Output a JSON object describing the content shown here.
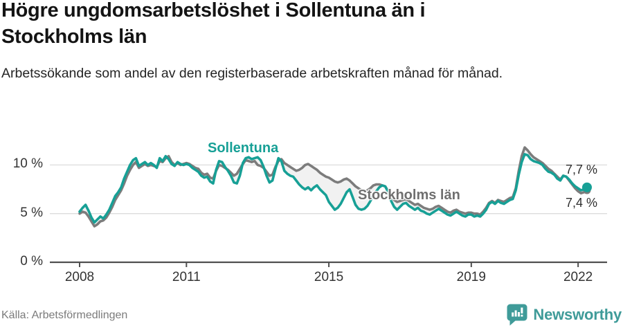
{
  "header": {
    "title": "Högre ungdomsarbetslöshet i Sollentuna än i Stockholms län",
    "subtitle": "Arbetssökande som andel av den registerbaserade arbetskraften månad för månad."
  },
  "footer": {
    "source": "Källa: Arbetsförmedlingen",
    "brand": "Newsworthy"
  },
  "colors": {
    "sollentuna_teal": "#17a096",
    "stockholm_gray": "#7c7c7c",
    "band_fill": "#f1f1f1",
    "grid": "#dcdcdc",
    "axis": "#4f4f4f",
    "brand_teal": "#3f9b99"
  },
  "chart_data": {
    "type": "line",
    "x_start": "2008-01",
    "x_end": "2022-04",
    "x_interval": "monthly",
    "ylim": [
      0,
      13.4
    ],
    "grid": true,
    "band_color": "#f1f1f1",
    "y_ticks": [
      {
        "label": "10 %",
        "value": 10
      },
      {
        "label": "5 %",
        "value": 5
      },
      {
        "label": "0 %",
        "value": 0
      }
    ],
    "x_ticks": [
      {
        "label": "2008",
        "month_index": 0
      },
      {
        "label": "2011",
        "month_index": 36
      },
      {
        "label": "2015",
        "month_index": 84
      },
      {
        "label": "2019",
        "month_index": 132
      },
      {
        "label": "2022",
        "month_index": 168
      }
    ],
    "series": [
      {
        "name": "Sollentuna",
        "color": "#17a096",
        "end_label": "7,7 %",
        "end_value": 7.7,
        "values": [
          5.2,
          5.6,
          5.9,
          5.3,
          4.6,
          4.1,
          4.4,
          4.7,
          4.5,
          4.9,
          5.4,
          6.1,
          6.8,
          7.2,
          7.7,
          8.6,
          9.3,
          10.0,
          10.5,
          10.7,
          9.9,
          10.1,
          10.3,
          10.0,
          10.2,
          10.0,
          9.7,
          10.7,
          10.4,
          10.9,
          10.6,
          10.1,
          9.9,
          10.3,
          10.1,
          10.0,
          10.1,
          10.0,
          9.7,
          9.5,
          9.3,
          8.9,
          8.7,
          8.8,
          8.3,
          8.1,
          9.5,
          10.4,
          10.3,
          9.8,
          9.4,
          8.9,
          8.2,
          8.1,
          8.9,
          10.2,
          10.7,
          10.8,
          10.6,
          10.7,
          10.8,
          10.5,
          9.8,
          8.9,
          8.2,
          8.4,
          9.6,
          10.7,
          10.4,
          9.4,
          9.1,
          8.9,
          8.8,
          8.4,
          8.0,
          7.7,
          7.5,
          7.7,
          7.4,
          7.7,
          7.9,
          7.5,
          7.2,
          6.9,
          6.2,
          5.8,
          5.4,
          5.6,
          6.0,
          6.6,
          7.2,
          7.5,
          6.7,
          5.9,
          5.5,
          5.4,
          5.5,
          5.8,
          6.3,
          6.9,
          7.3,
          7.7,
          7.9,
          7.8,
          7.2,
          6.3,
          5.7,
          5.4,
          5.7,
          6.0,
          6.1,
          5.8,
          5.6,
          5.4,
          5.6,
          5.3,
          5.2,
          5.0,
          4.9,
          5.1,
          5.3,
          5.5,
          5.3,
          5.1,
          4.9,
          4.8,
          5.0,
          5.2,
          5.0,
          4.8,
          4.7,
          4.9,
          4.9,
          4.7,
          4.8,
          4.7,
          5.0,
          5.4,
          6.0,
          6.2,
          6.0,
          6.3,
          6.1,
          6.0,
          6.2,
          6.4,
          6.5,
          7.4,
          9.0,
          10.3,
          11.1,
          11.0,
          10.6,
          10.4,
          10.3,
          10.2,
          10.0,
          9.6,
          9.3,
          9.2,
          9.0,
          8.6,
          8.4,
          8.9,
          8.8,
          8.5,
          8.1,
          7.8,
          7.6,
          7.4,
          7.5,
          7.7
        ]
      },
      {
        "name": "Stockholms län",
        "color": "#7c7c7c",
        "end_label": "7,4 %",
        "end_value": 7.4,
        "values": [
          5.0,
          5.2,
          5.1,
          4.7,
          4.2,
          3.7,
          3.9,
          4.2,
          4.3,
          4.6,
          5.1,
          5.7,
          6.4,
          6.9,
          7.4,
          8.1,
          8.9,
          9.5,
          10.0,
          10.3,
          9.7,
          9.9,
          10.1,
          9.9,
          10.0,
          9.9,
          9.8,
          10.4,
          10.3,
          10.7,
          10.9,
          10.3,
          10.0,
          10.2,
          10.0,
          10.1,
          10.2,
          10.1,
          9.9,
          9.7,
          9.6,
          9.2,
          9.0,
          9.1,
          8.7,
          8.6,
          9.4,
          10.0,
          9.9,
          9.7,
          9.5,
          9.2,
          8.9,
          9.1,
          9.6,
          10.1,
          10.5,
          10.4,
          10.3,
          10.4,
          10.0,
          9.9,
          9.7,
          9.3,
          8.9,
          9.0,
          9.8,
          10.4,
          10.6,
          10.2,
          10.0,
          9.8,
          9.6,
          9.4,
          9.5,
          9.7,
          10.0,
          10.1,
          9.9,
          9.7,
          9.5,
          9.2,
          9.0,
          8.8,
          8.7,
          8.5,
          8.3,
          8.2,
          8.3,
          8.5,
          8.6,
          8.4,
          8.1,
          7.8,
          7.6,
          7.4,
          7.3,
          7.4,
          7.6,
          7.9,
          8.0,
          8.0,
          7.9,
          7.8,
          7.3,
          6.8,
          6.4,
          6.2,
          6.3,
          6.4,
          6.5,
          6.3,
          6.1,
          5.9,
          6.0,
          5.8,
          5.6,
          5.5,
          5.4,
          5.5,
          5.7,
          5.8,
          5.6,
          5.4,
          5.2,
          5.1,
          5.3,
          5.4,
          5.2,
          5.1,
          5.0,
          5.1,
          5.1,
          5.0,
          5.0,
          4.9,
          5.2,
          5.6,
          6.1,
          6.3,
          6.1,
          6.4,
          6.3,
          6.2,
          6.4,
          6.6,
          6.7,
          7.6,
          9.4,
          10.9,
          11.8,
          11.5,
          11.1,
          10.8,
          10.6,
          10.4,
          10.2,
          9.9,
          9.6,
          9.4,
          9.1,
          8.8,
          8.5,
          8.9,
          8.8,
          8.4,
          8.0,
          7.6,
          7.3,
          7.1,
          7.2,
          7.4
        ]
      }
    ]
  }
}
